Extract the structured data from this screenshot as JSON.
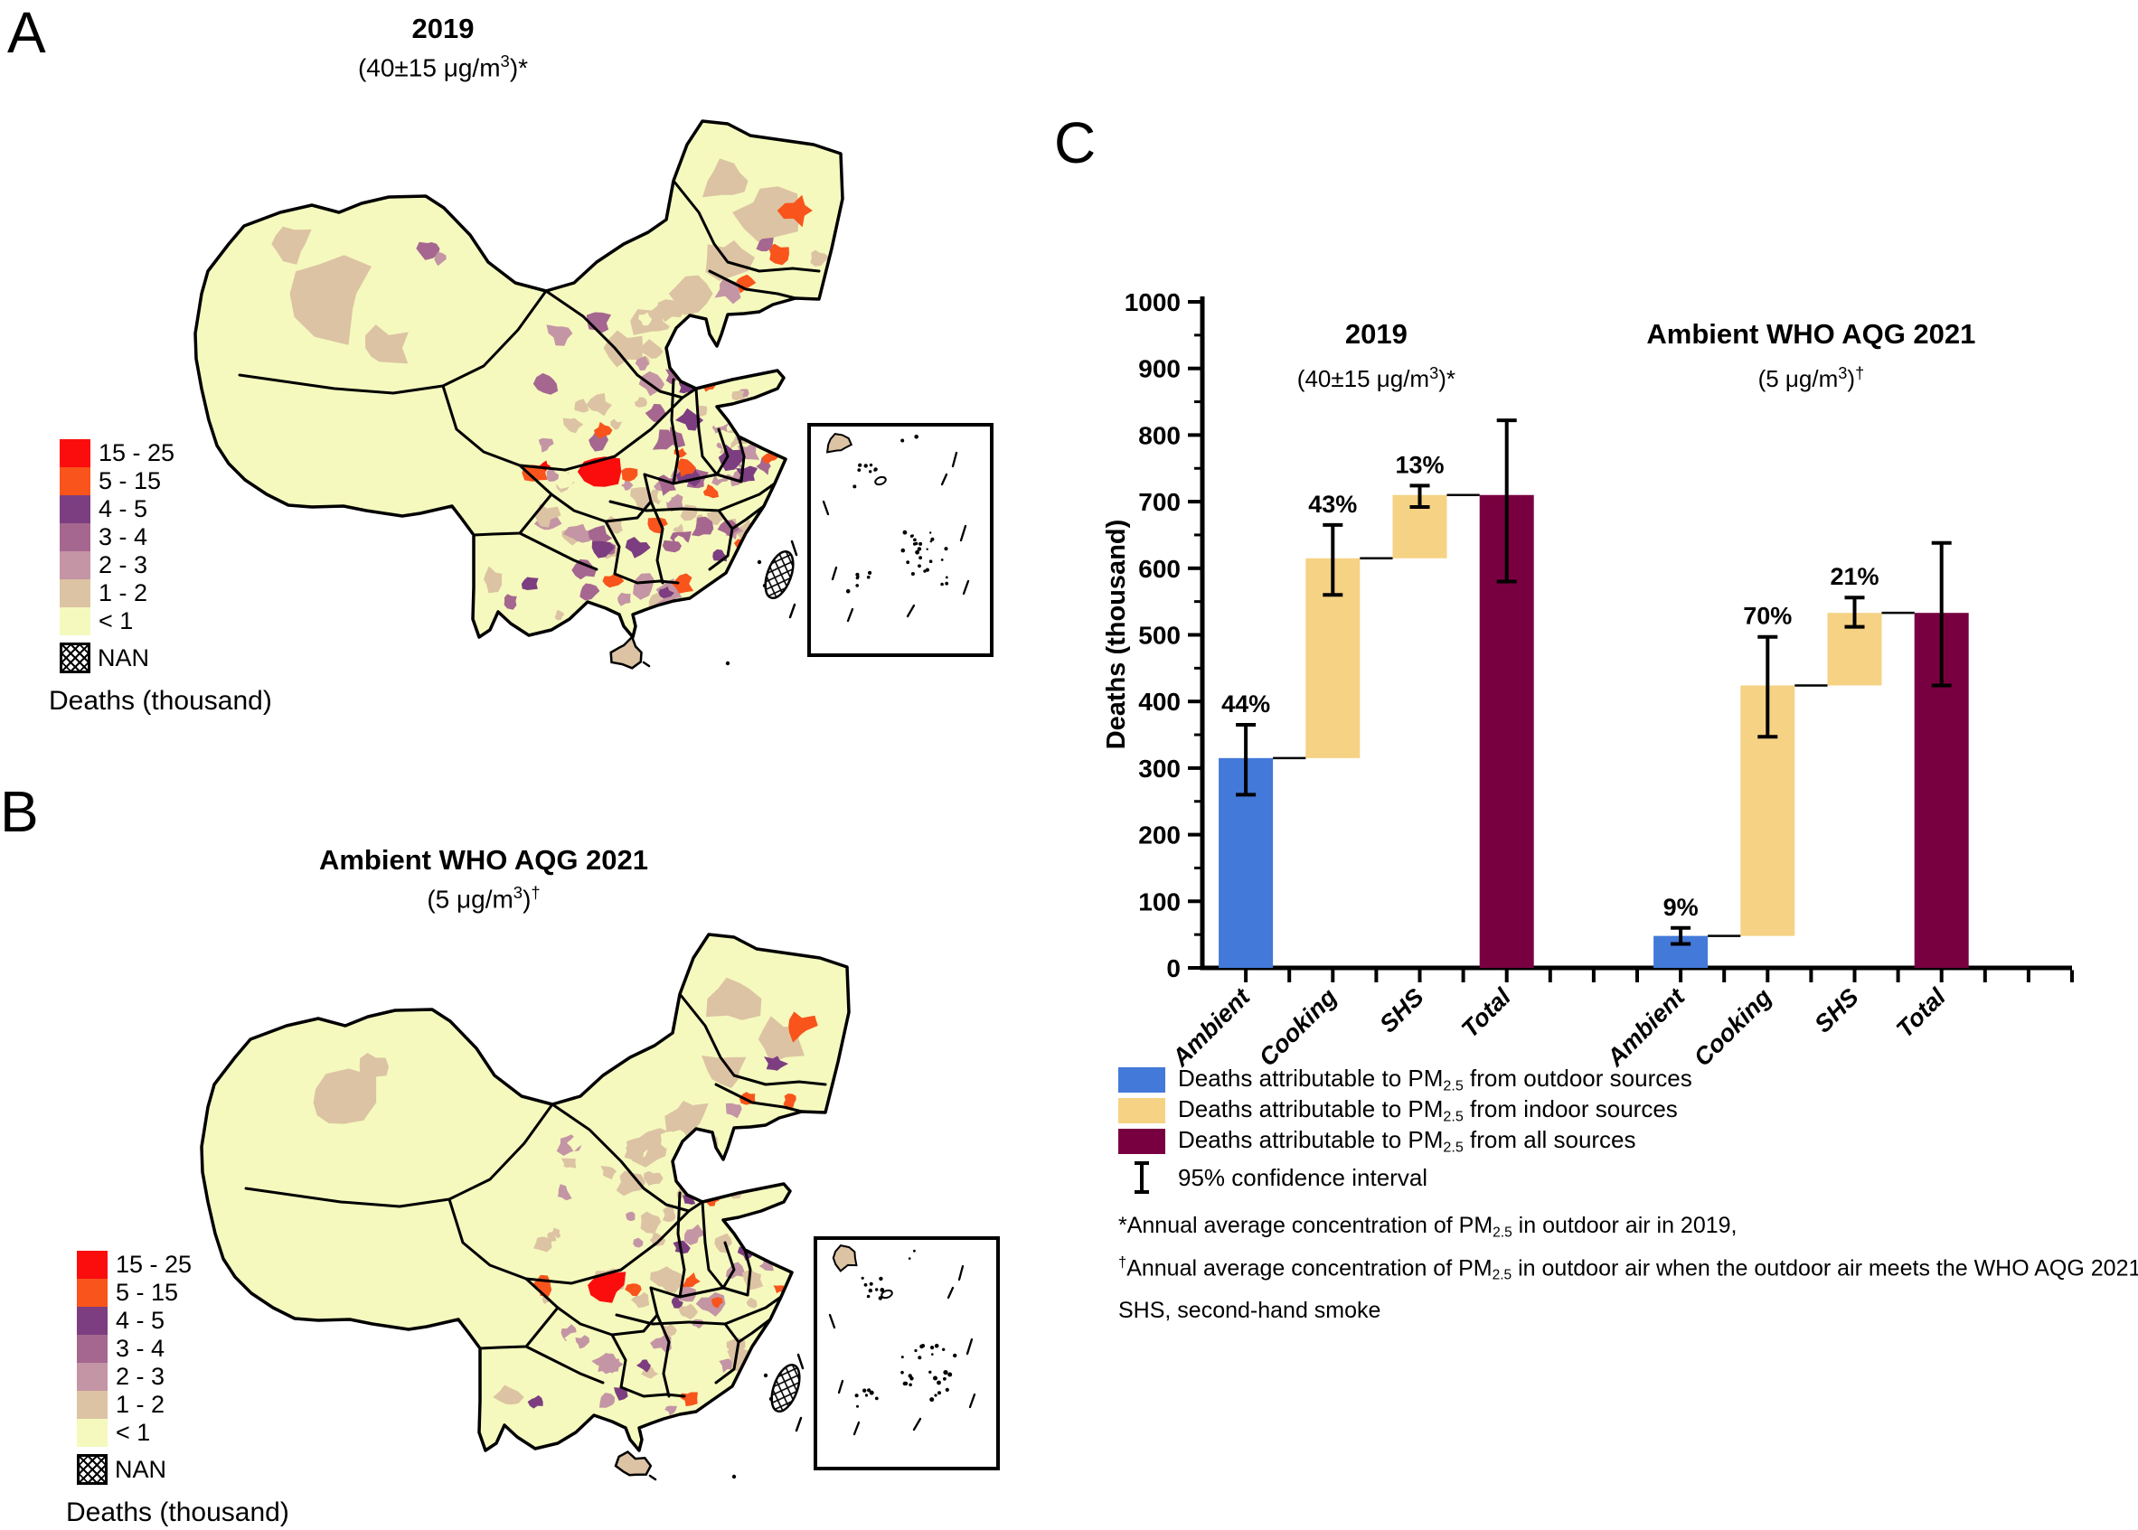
{
  "panel_a": {
    "label": "A",
    "title": "2019",
    "subtitle_parts": [
      {
        "t": "(40±15 μg/m"
      },
      {
        "sup": "3"
      },
      {
        "t": ")*"
      }
    ]
  },
  "panel_b": {
    "label": "B",
    "title": "Ambient WHO AQG 2021",
    "subtitle_parts": [
      {
        "t": "(5 μg/m"
      },
      {
        "sup": "3"
      },
      {
        "t": ")"
      },
      {
        "sup": "†"
      }
    ]
  },
  "panel_c": {
    "label": "C"
  },
  "map_legend": {
    "caption": "Deaths (thousand)",
    "nan_label": "NAN",
    "classes": [
      {
        "label": "15 - 25",
        "color": "#fb0d0d"
      },
      {
        "label": "5 - 15",
        "color": "#f9541b"
      },
      {
        "label": "4 - 5",
        "color": "#7c3e80"
      },
      {
        "label": "3 - 4",
        "color": "#a5678f"
      },
      {
        "label": "2 - 3",
        "color": "#c495a4"
      },
      {
        "label": "1 - 2",
        "color": "#dcc3a3"
      },
      {
        "label": "< 1",
        "color": "#f5f9be"
      }
    ]
  },
  "chart_data": {
    "type": "bar",
    "ylabel": "Deaths (thousand)",
    "ylim": [
      0,
      1000
    ],
    "ytick_step": 100,
    "grid": false,
    "legend_position": "bottom",
    "series_colors": {
      "outdoor": "#4379d9",
      "indoor": "#f5d284",
      "all": "#790040"
    },
    "categories": [
      "Ambient",
      "Cooking",
      "SHS",
      "Total"
    ],
    "groups": [
      {
        "title": "2019",
        "subtitle_parts": [
          {
            "t": "(40±15 μg/m"
          },
          {
            "sup": "3"
          },
          {
            "t": ")*"
          }
        ],
        "bars": [
          {
            "category": "Ambient",
            "color": "outdoor",
            "base": 0,
            "top": 315,
            "ci": [
              260,
              365
            ],
            "pct": "44%"
          },
          {
            "category": "Cooking",
            "color": "indoor",
            "base": 315,
            "top": 615,
            "ci": [
              560,
              665
            ],
            "pct": "43%"
          },
          {
            "category": "SHS",
            "color": "indoor",
            "base": 615,
            "top": 710,
            "ci": [
              692,
              724
            ],
            "pct": "13%"
          },
          {
            "category": "Total",
            "color": "all",
            "base": 0,
            "top": 710,
            "ci": [
              580,
              822
            ],
            "pct": null
          }
        ]
      },
      {
        "title": "Ambient WHO AQG 2021",
        "subtitle_parts": [
          {
            "t": "(5 μg/m"
          },
          {
            "sup": "3"
          },
          {
            "t": ")"
          },
          {
            "sup": "†"
          }
        ],
        "bars": [
          {
            "category": "Ambient",
            "color": "outdoor",
            "base": 0,
            "top": 48,
            "ci": [
              36,
              60
            ],
            "pct": "9%"
          },
          {
            "category": "Cooking",
            "color": "indoor",
            "base": 48,
            "top": 424,
            "ci": [
              347,
              497
            ],
            "pct": "70%"
          },
          {
            "category": "SHS",
            "color": "indoor",
            "base": 424,
            "top": 533,
            "ci": [
              512,
              556
            ],
            "pct": "21%"
          },
          {
            "category": "Total",
            "color": "all",
            "base": 0,
            "top": 533,
            "ci": [
              424,
              638
            ],
            "pct": null
          }
        ]
      }
    ]
  },
  "chart_legend": {
    "items": [
      {
        "color_key": "outdoor",
        "parts": [
          {
            "t": "Deaths attributable to PM"
          },
          {
            "sub": "2.5"
          },
          {
            "t": " from outdoor sources"
          }
        ]
      },
      {
        "color_key": "indoor",
        "parts": [
          {
            "t": "Deaths attributable to PM"
          },
          {
            "sub": "2.5"
          },
          {
            "t": " from indoor sources"
          }
        ]
      },
      {
        "color_key": "all",
        "parts": [
          {
            "t": "Deaths attributable to PM"
          },
          {
            "sub": "2.5"
          },
          {
            "t": " from all sources"
          }
        ]
      }
    ],
    "ci_label": "95% confidence interval",
    "footnotes": [
      [
        {
          "t": "*Annual average concentration of PM"
        },
        {
          "sub": "2.5"
        },
        {
          "t": " in outdoor air in 2019,"
        }
      ],
      [
        {
          "sup": "†"
        },
        {
          "t": "Annual average concentration of PM"
        },
        {
          "sub": "2.5"
        },
        {
          "t": " in outdoor air when the outdoor air meets the WHO AQG 2021."
        }
      ],
      [
        {
          "t": "SHS, second-hand smoke"
        }
      ]
    ]
  }
}
